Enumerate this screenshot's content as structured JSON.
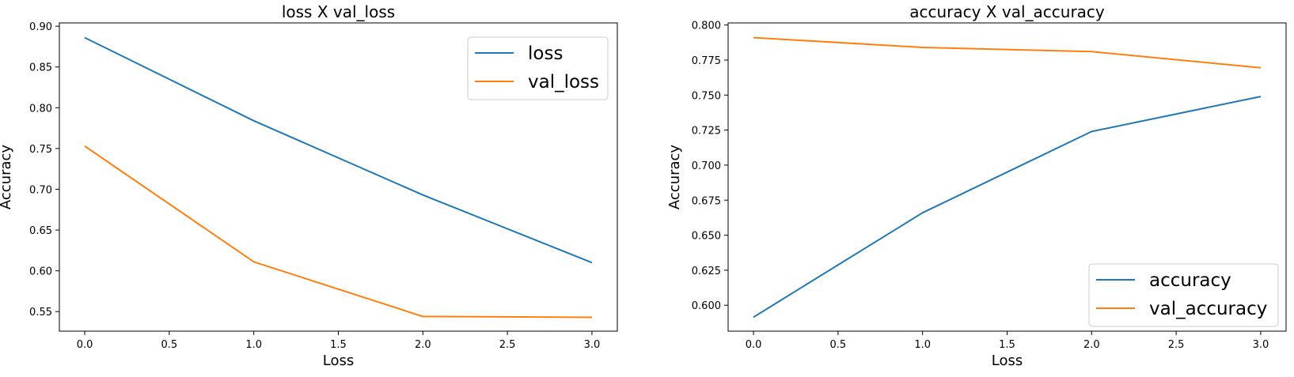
{
  "chart_data": [
    {
      "type": "line",
      "title": "loss X val_loss",
      "xlabel": "Loss",
      "ylabel": "Accuracy",
      "x": [
        0,
        1,
        2,
        3
      ],
      "xlim": [
        -0.15,
        3.15
      ],
      "ylim": [
        0.526,
        0.904
      ],
      "xticks": [
        0.0,
        0.5,
        1.0,
        1.5,
        2.0,
        2.5,
        3.0
      ],
      "xtick_labels": [
        "0.0",
        "0.5",
        "1.0",
        "1.5",
        "2.0",
        "2.5",
        "3.0"
      ],
      "yticks": [
        0.55,
        0.6,
        0.65,
        0.7,
        0.75,
        0.8,
        0.85,
        0.9
      ],
      "ytick_labels": [
        "0.55",
        "0.60",
        "0.65",
        "0.70",
        "0.75",
        "0.80",
        "0.85",
        "0.90"
      ],
      "grid": false,
      "legend_position": "upper right",
      "series": [
        {
          "name": "loss",
          "color": "#1f77b4",
          "values": [
            0.886,
            0.784,
            0.693,
            0.61
          ]
        },
        {
          "name": "val_loss",
          "color": "#ff7f0e",
          "values": [
            0.753,
            0.611,
            0.544,
            0.543
          ]
        }
      ]
    },
    {
      "type": "line",
      "title": "accuracy X val_accuracy",
      "xlabel": "Loss",
      "ylabel": "Accuracy",
      "x": [
        0,
        1,
        2,
        3
      ],
      "xlim": [
        -0.15,
        3.15
      ],
      "ylim": [
        0.5815,
        0.8015
      ],
      "xticks": [
        0.0,
        0.5,
        1.0,
        1.5,
        2.0,
        2.5,
        3.0
      ],
      "xtick_labels": [
        "0.0",
        "0.5",
        "1.0",
        "1.5",
        "2.0",
        "2.5",
        "3.0"
      ],
      "yticks": [
        0.6,
        0.625,
        0.65,
        0.675,
        0.7,
        0.725,
        0.75,
        0.775,
        0.8
      ],
      "ytick_labels": [
        "0.600",
        "0.625",
        "0.650",
        "0.675",
        "0.700",
        "0.725",
        "0.750",
        "0.775",
        "0.800"
      ],
      "grid": false,
      "legend_position": "lower right",
      "series": [
        {
          "name": "accuracy",
          "color": "#1f77b4",
          "values": [
            0.5915,
            0.666,
            0.724,
            0.749
          ]
        },
        {
          "name": "val_accuracy",
          "color": "#ff7f0e",
          "values": [
            0.791,
            0.784,
            0.781,
            0.7695
          ]
        }
      ]
    }
  ]
}
